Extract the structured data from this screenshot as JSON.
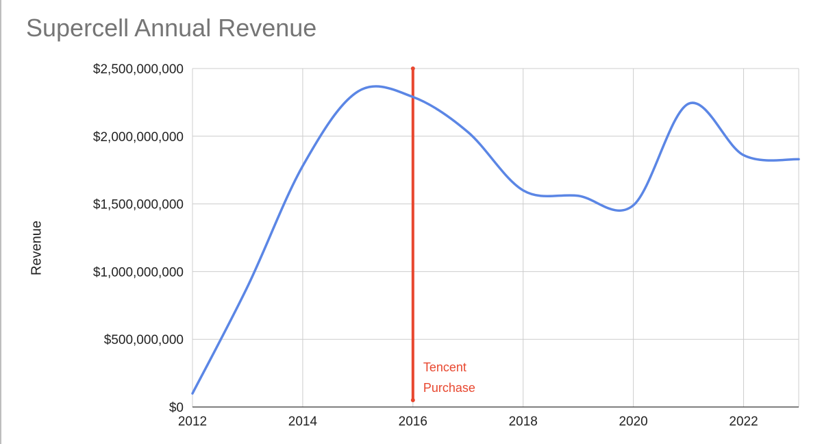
{
  "chart_data": {
    "type": "line",
    "title": "Supercell Annual Revenue",
    "xlabel": "",
    "ylabel": "Revenue",
    "x": [
      2012,
      2013,
      2014,
      2015,
      2016,
      2017,
      2018,
      2019,
      2020,
      2021,
      2022,
      2023
    ],
    "series": [
      {
        "values": [
          100000000,
          890000000,
          1780000000,
          2330000000,
          2290000000,
          2030000000,
          1600000000,
          1560000000,
          1490000000,
          2240000000,
          1860000000,
          1830000000
        ]
      }
    ],
    "xlim": [
      2012,
      2023
    ],
    "ylim": [
      0,
      2500000000
    ],
    "x_ticks": [
      {
        "value": 2012,
        "label": "2012"
      },
      {
        "value": 2014,
        "label": "2014"
      },
      {
        "value": 2016,
        "label": "2016"
      },
      {
        "value": 2018,
        "label": "2018"
      },
      {
        "value": 2020,
        "label": "2020"
      },
      {
        "value": 2022,
        "label": "2022"
      }
    ],
    "y_ticks": [
      {
        "value": 0,
        "label": "$0"
      },
      {
        "value": 500000000,
        "label": "$500,000,000"
      },
      {
        "value": 1000000000,
        "label": "$1,000,000,000"
      },
      {
        "value": 1500000000,
        "label": "$1,500,000,000"
      },
      {
        "value": 2000000000,
        "label": "$2,000,000,000"
      },
      {
        "value": 2500000000,
        "label": "$2,500,000,000"
      }
    ],
    "grid": true,
    "annotation": {
      "x": 2016,
      "label_lines": [
        "Tencent",
        "Purchase"
      ]
    },
    "colors": {
      "line": "#5b86e5",
      "annotation": "#e8472f",
      "grid": "#cccccc",
      "title": "#757575"
    }
  }
}
